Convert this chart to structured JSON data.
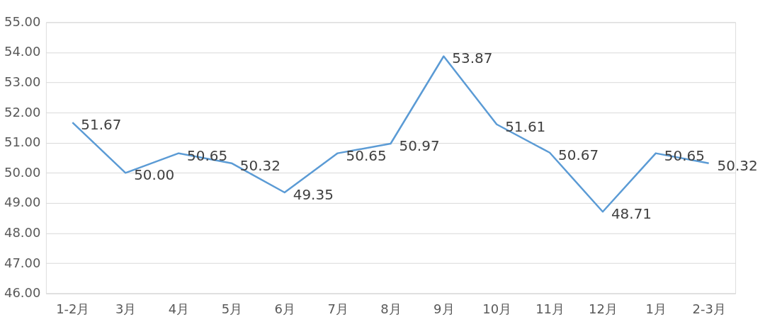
{
  "chart_data": {
    "type": "line",
    "categories": [
      "1-2月",
      "3月",
      "4月",
      "5月",
      "6月",
      "7月",
      "8月",
      "9月",
      "10月",
      "11月",
      "12月",
      "1月",
      "2-3月"
    ],
    "series": [
      {
        "color": "#5b9bd5",
        "values": [
          51.67,
          50.0,
          50.65,
          50.32,
          49.35,
          50.65,
          50.97,
          53.87,
          51.61,
          50.67,
          48.71,
          50.65,
          50.32
        ],
        "value_labels": [
          "51.67",
          "50.00",
          "50.65",
          "50.32",
          "49.35",
          "50.65",
          "50.97",
          "53.87",
          "51.61",
          "50.67",
          "48.71",
          "50.65",
          "50.32"
        ]
      }
    ],
    "ylim": [
      46,
      55
    ],
    "yticks": [
      {
        "value": 46,
        "label": "46.00"
      },
      {
        "value": 47,
        "label": "47.00"
      },
      {
        "value": 48,
        "label": "48.00"
      },
      {
        "value": 49,
        "label": "49.00"
      },
      {
        "value": 50,
        "label": "50.00"
      },
      {
        "value": 51,
        "label": "51.00"
      },
      {
        "value": 52,
        "label": "52.00"
      },
      {
        "value": 53,
        "label": "53.00"
      },
      {
        "value": 54,
        "label": "54.00"
      },
      {
        "value": 55,
        "label": "55.00"
      }
    ],
    "grid": "y",
    "marker": "none",
    "line_style": "solid"
  }
}
